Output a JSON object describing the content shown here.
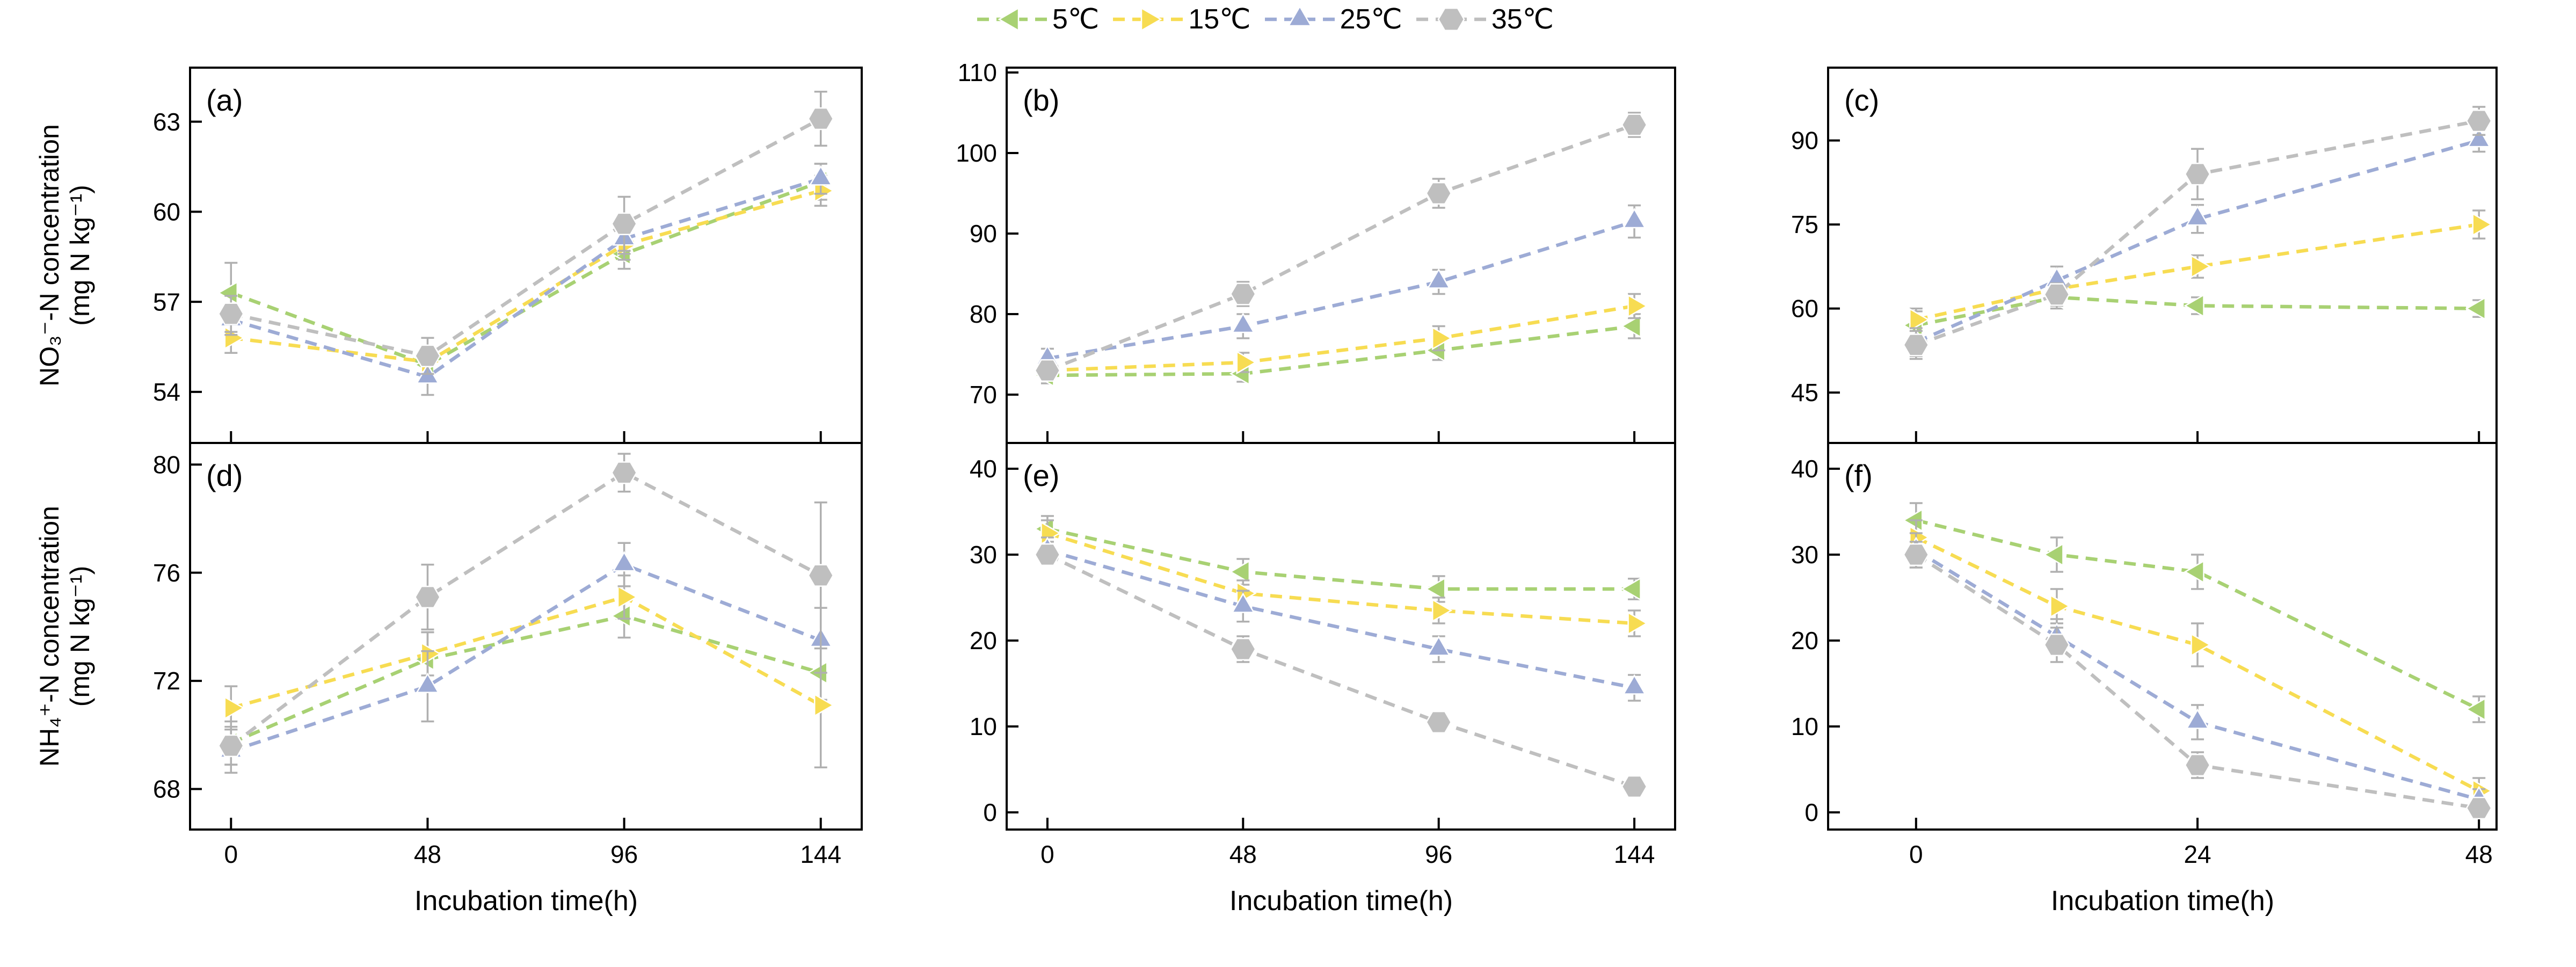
{
  "figure": {
    "background": "#ffffff"
  },
  "colors": {
    "axis": "#000000",
    "text": "#000000",
    "error_bar": "#b0b0b0"
  },
  "legend": {
    "entries": [
      {
        "label": "5℃",
        "color": "#a8d173",
        "marker": "triangle-left"
      },
      {
        "label": "15℃",
        "color": "#f7dc52",
        "marker": "triangle-right"
      },
      {
        "label": "25℃",
        "color": "#9dabd5",
        "marker": "triangle-up"
      },
      {
        "label": "35℃",
        "color": "#bfbfbf",
        "marker": "hexagon"
      }
    ]
  },
  "axes": {
    "x_title": "Incubation time(h)",
    "y_top_line1": "NO₃⁻-N concentration",
    "y_top_line2": "(mg N kg⁻¹)",
    "y_bottom_line1": "NH₄⁺-N concentration",
    "y_bottom_line2": "(mg N kg⁻¹)"
  },
  "chart_data": [
    {
      "id": "a",
      "label": "(a)",
      "type": "line",
      "row": 0,
      "col": 0,
      "x": [
        0,
        48,
        96,
        144
      ],
      "xticks": [
        0,
        48,
        96,
        144
      ],
      "xlim": [
        -10,
        154
      ],
      "yticks": [
        54,
        57,
        60,
        63
      ],
      "ylim": [
        52.3,
        64.8
      ],
      "series": [
        {
          "name": "5℃",
          "values": [
            57.3,
            54.9,
            58.6,
            61.0
          ],
          "errors": [
            1.0,
            0.5,
            0.5,
            0.6
          ]
        },
        {
          "name": "15℃",
          "values": [
            55.8,
            55.0,
            58.9,
            60.7
          ],
          "errors": [
            0.5,
            0.5,
            0.5,
            0.5
          ]
        },
        {
          "name": "25℃",
          "values": [
            56.4,
            54.5,
            59.1,
            61.1
          ],
          "errors": [
            0.5,
            0.6,
            0.5,
            0.5
          ]
        },
        {
          "name": "35℃",
          "values": [
            56.6,
            55.2,
            59.6,
            63.1
          ],
          "errors": [
            0.6,
            0.6,
            0.9,
            0.9
          ]
        }
      ]
    },
    {
      "id": "b",
      "label": "(b)",
      "type": "line",
      "row": 0,
      "col": 1,
      "x": [
        0,
        48,
        96,
        144
      ],
      "xticks": [
        0,
        48,
        96,
        144
      ],
      "xlim": [
        -10,
        154
      ],
      "yticks": [
        70,
        80,
        90,
        100,
        110
      ],
      "ylim": [
        64,
        110.6
      ],
      "series": [
        {
          "name": "5℃",
          "values": [
            72.4,
            72.6,
            75.5,
            78.5
          ],
          "errors": [
            1.0,
            1.0,
            1.2,
            1.5
          ]
        },
        {
          "name": "15℃",
          "values": [
            73.0,
            74.0,
            77.0,
            81.0
          ],
          "errors": [
            1.0,
            1.2,
            1.5,
            1.5
          ]
        },
        {
          "name": "25℃",
          "values": [
            74.5,
            78.5,
            84.0,
            91.5
          ],
          "errors": [
            1.2,
            1.5,
            1.5,
            2.0
          ]
        },
        {
          "name": "35℃",
          "values": [
            73.0,
            82.5,
            95.0,
            103.5
          ],
          "errors": [
            1.0,
            1.5,
            1.8,
            1.5
          ]
        }
      ]
    },
    {
      "id": "c",
      "label": "(c)",
      "type": "line",
      "row": 0,
      "col": 2,
      "x": [
        0,
        12,
        24,
        48
      ],
      "xticks": [
        0,
        24,
        48
      ],
      "xlim": [
        -7.5,
        49.5
      ],
      "yticks": [
        45,
        60,
        75,
        90
      ],
      "ylim": [
        36,
        103
      ],
      "series": [
        {
          "name": "5℃",
          "values": [
            57.0,
            62.0,
            60.5,
            60.0
          ],
          "errors": [
            2.5,
            2.0,
            1.5,
            1.5
          ]
        },
        {
          "name": "15℃",
          "values": [
            58.0,
            63.5,
            67.5,
            75.0
          ],
          "errors": [
            2.0,
            2.0,
            2.0,
            2.5
          ]
        },
        {
          "name": "25℃",
          "values": [
            54.0,
            65.0,
            76.0,
            90.0
          ],
          "errors": [
            2.5,
            2.5,
            2.5,
            2.0
          ]
        },
        {
          "name": "35℃",
          "values": [
            53.5,
            62.5,
            84.0,
            93.5
          ],
          "errors": [
            2.5,
            2.0,
            4.5,
            2.5
          ]
        }
      ]
    },
    {
      "id": "d",
      "label": "(d)",
      "type": "line",
      "row": 1,
      "col": 0,
      "x": [
        0,
        48,
        96,
        144
      ],
      "xticks": [
        0,
        48,
        96,
        144
      ],
      "xlim": [
        -10,
        154
      ],
      "yticks": [
        68,
        72,
        76,
        80
      ],
      "ylim": [
        66.5,
        80.8
      ],
      "series": [
        {
          "name": "5℃",
          "values": [
            69.7,
            72.8,
            74.4,
            72.3
          ],
          "errors": [
            0.8,
            1.0,
            0.8,
            1.0
          ]
        },
        {
          "name": "15℃",
          "values": [
            71.0,
            73.0,
            75.1,
            71.1
          ],
          "errors": [
            0.8,
            0.8,
            0.8,
            2.3
          ]
        },
        {
          "name": "25℃",
          "values": [
            69.4,
            71.8,
            76.3,
            73.5
          ],
          "errors": [
            0.8,
            1.3,
            0.8,
            1.2
          ]
        },
        {
          "name": "35℃",
          "values": [
            69.6,
            75.1,
            79.7,
            75.9
          ],
          "errors": [
            0.7,
            1.2,
            0.7,
            2.7
          ]
        }
      ]
    },
    {
      "id": "e",
      "label": "(e)",
      "type": "line",
      "row": 1,
      "col": 1,
      "x": [
        0,
        48,
        96,
        144
      ],
      "xticks": [
        0,
        48,
        96,
        144
      ],
      "xlim": [
        -10,
        154
      ],
      "yticks": [
        0,
        10,
        20,
        30,
        40
      ],
      "ylim": [
        -2,
        43
      ],
      "series": [
        {
          "name": "5℃",
          "values": [
            33.0,
            28.0,
            26.0,
            26.0
          ],
          "errors": [
            1.5,
            1.5,
            1.5,
            1.2
          ]
        },
        {
          "name": "15℃",
          "values": [
            32.5,
            25.5,
            23.5,
            22.0
          ],
          "errors": [
            1.5,
            1.5,
            1.5,
            1.5
          ]
        },
        {
          "name": "25℃",
          "values": [
            30.5,
            24.0,
            19.0,
            14.5
          ],
          "errors": [
            1.5,
            1.8,
            1.5,
            1.5
          ]
        },
        {
          "name": "35℃",
          "values": [
            30.0,
            19.0,
            10.5,
            3.0
          ],
          "errors": [
            1.2,
            1.5,
            1.2,
            1.0
          ]
        }
      ]
    },
    {
      "id": "f",
      "label": "(f)",
      "type": "line",
      "row": 1,
      "col": 2,
      "x": [
        0,
        12,
        24,
        48
      ],
      "xticks": [
        0,
        24,
        48
      ],
      "xlim": [
        -7.5,
        49.5
      ],
      "yticks": [
        0,
        10,
        20,
        30,
        40
      ],
      "ylim": [
        -2,
        43
      ],
      "series": [
        {
          "name": "5℃",
          "values": [
            34.0,
            30.0,
            28.0,
            12.0
          ],
          "errors": [
            2.0,
            2.0,
            2.0,
            1.5
          ]
        },
        {
          "name": "15℃",
          "values": [
            32.0,
            24.0,
            19.5,
            2.5
          ],
          "errors": [
            2.0,
            2.0,
            2.5,
            1.5
          ]
        },
        {
          "name": "25℃",
          "values": [
            30.5,
            20.5,
            10.5,
            1.5
          ],
          "errors": [
            2.0,
            2.0,
            2.0,
            1.2
          ]
        },
        {
          "name": "35℃",
          "values": [
            30.0,
            19.5,
            5.5,
            0.5
          ],
          "errors": [
            1.5,
            2.0,
            1.5,
            1.0
          ]
        }
      ]
    }
  ]
}
